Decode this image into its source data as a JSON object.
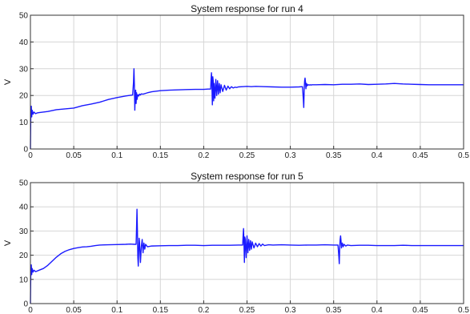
{
  "chart_data": [
    {
      "type": "line",
      "title": "System response for run 4",
      "xlabel": "",
      "ylabel": "V",
      "xlim": [
        0,
        0.5
      ],
      "ylim": [
        0,
        50
      ],
      "x_ticks": [
        "0",
        "0.05",
        "0.1",
        "0.15",
        "0.2",
        "0.25",
        "0.3",
        "0.35",
        "0.4",
        "0.45",
        "0.5"
      ],
      "y_ticks": [
        "0",
        "10",
        "20",
        "30",
        "40",
        "50"
      ],
      "grid": true,
      "color": "#1a1aff",
      "series": [
        {
          "x": [
            0,
            0.0005,
            0.001,
            0.0015,
            0.002,
            0.003,
            0.004,
            0.006,
            0.008,
            0.01,
            0.02,
            0.03,
            0.04,
            0.05,
            0.06,
            0.07,
            0.08,
            0.09,
            0.1,
            0.11,
            0.118,
            0.119,
            0.1195,
            0.12,
            0.1205,
            0.121,
            0.1215,
            0.122,
            0.1225,
            0.123,
            0.124,
            0.125,
            0.126,
            0.127,
            0.128,
            0.13,
            0.135,
            0.14,
            0.15,
            0.16,
            0.17,
            0.18,
            0.19,
            0.2,
            0.205,
            0.208,
            0.2085,
            0.209,
            0.2095,
            0.21,
            0.2105,
            0.211,
            0.2115,
            0.212,
            0.213,
            0.214,
            0.215,
            0.216,
            0.217,
            0.218,
            0.219,
            0.22,
            0.222,
            0.224,
            0.226,
            0.228,
            0.23,
            0.232,
            0.234,
            0.236,
            0.238,
            0.24,
            0.245,
            0.25,
            0.255,
            0.26,
            0.27,
            0.28,
            0.29,
            0.3,
            0.31,
            0.314,
            0.3145,
            0.315,
            0.3155,
            0.316,
            0.3165,
            0.317,
            0.3175,
            0.318,
            0.3185,
            0.319,
            0.3195,
            0.32,
            0.321,
            0.322,
            0.323,
            0.324,
            0.325,
            0.33,
            0.34,
            0.35,
            0.36,
            0.37,
            0.38,
            0.39,
            0.4,
            0.41,
            0.42,
            0.43,
            0.44,
            0.45,
            0.46,
            0.47,
            0.48,
            0.49,
            0.5
          ],
          "y": [
            0,
            15,
            16,
            12,
            14.5,
            13,
            13.8,
            13.2,
            13.5,
            13.6,
            14,
            14.7,
            15,
            15.3,
            16.2,
            16.8,
            17.5,
            18.5,
            19.2,
            19.8,
            20.2,
            25,
            30,
            24,
            14.5,
            20,
            22,
            17,
            21,
            18.5,
            20.3,
            19.8,
            20.5,
            20.2,
            20.6,
            20.5,
            21,
            21.4,
            21.8,
            22,
            22.1,
            22.2,
            22.3,
            22.3,
            22.4,
            22.4,
            26,
            28.5,
            24,
            16.5,
            27,
            25.5,
            18,
            24.5,
            19,
            26,
            20,
            25.5,
            20.5,
            24.5,
            21,
            24,
            21.5,
            23.8,
            22,
            23.5,
            22.5,
            23.3,
            22.8,
            23.1,
            23,
            23.2,
            23.3,
            23.4,
            23.3,
            23.4,
            23.3,
            23.2,
            23.1,
            23.1,
            23.2,
            23.3,
            21,
            18.5,
            15.5,
            22,
            25.5,
            26.5,
            25,
            22.5,
            24.5,
            23.5,
            24.2,
            23.8,
            24,
            23.9,
            24,
            23.9,
            24,
            24,
            24.1,
            24,
            24.2,
            24.2,
            24.3,
            24.1,
            24.2,
            24.3,
            24.5,
            24.3,
            24.2,
            24.1,
            24,
            24,
            24,
            24,
            24
          ]
        }
      ]
    },
    {
      "type": "line",
      "title": "System response for run 5",
      "xlabel": "",
      "ylabel": "V",
      "xlim": [
        0,
        0.5
      ],
      "ylim": [
        0,
        50
      ],
      "x_ticks": [
        "0",
        "0.05",
        "0.1",
        "0.15",
        "0.2",
        "0.25",
        "0.3",
        "0.35",
        "0.4",
        "0.45",
        "0.5"
      ],
      "y_ticks": [
        "0",
        "10",
        "20",
        "30",
        "40",
        "50"
      ],
      "grid": true,
      "color": "#1a1aff",
      "series": [
        {
          "x": [
            0,
            0.0005,
            0.001,
            0.0015,
            0.002,
            0.003,
            0.004,
            0.006,
            0.008,
            0.01,
            0.015,
            0.02,
            0.025,
            0.03,
            0.035,
            0.04,
            0.045,
            0.05,
            0.055,
            0.06,
            0.065,
            0.07,
            0.075,
            0.08,
            0.09,
            0.1,
            0.11,
            0.115,
            0.12,
            0.122,
            0.1225,
            0.123,
            0.1235,
            0.124,
            0.1245,
            0.125,
            0.1255,
            0.126,
            0.127,
            0.128,
            0.129,
            0.13,
            0.131,
            0.132,
            0.133,
            0.135,
            0.14,
            0.15,
            0.16,
            0.17,
            0.18,
            0.19,
            0.2,
            0.21,
            0.22,
            0.23,
            0.24,
            0.245,
            0.2455,
            0.246,
            0.2465,
            0.247,
            0.2475,
            0.248,
            0.249,
            0.25,
            0.251,
            0.252,
            0.253,
            0.254,
            0.255,
            0.256,
            0.258,
            0.26,
            0.262,
            0.264,
            0.266,
            0.268,
            0.27,
            0.275,
            0.28,
            0.29,
            0.3,
            0.31,
            0.32,
            0.33,
            0.34,
            0.35,
            0.355,
            0.3555,
            0.356,
            0.3565,
            0.357,
            0.3575,
            0.358,
            0.3585,
            0.359,
            0.36,
            0.361,
            0.362,
            0.364,
            0.366,
            0.37,
            0.38,
            0.39,
            0.4,
            0.41,
            0.42,
            0.43,
            0.44,
            0.45,
            0.46,
            0.47,
            0.48,
            0.49,
            0.5
          ],
          "y": [
            0,
            15,
            16,
            12,
            14.5,
            13,
            13.8,
            13.2,
            13.5,
            13.8,
            14.5,
            15.8,
            17.5,
            19.2,
            20.6,
            21.6,
            22.3,
            22.8,
            23.1,
            23.4,
            23.5,
            23.7,
            24,
            24.2,
            24.3,
            24.4,
            24.5,
            24.6,
            24.5,
            24.5,
            31,
            39,
            30,
            19,
            15.5,
            22,
            27,
            25,
            17,
            23.5,
            26.5,
            21,
            25,
            22.5,
            24.5,
            23.5,
            23.8,
            23.9,
            24,
            24,
            24.1,
            24.1,
            24,
            24.1,
            24.1,
            24.1,
            24.2,
            24.2,
            28,
            31,
            25,
            17,
            27.5,
            26.5,
            19,
            28,
            21,
            26.5,
            22,
            26,
            22.5,
            25.5,
            23,
            25,
            23.5,
            24.8,
            23.8,
            24.6,
            24,
            24.3,
            24.2,
            24.3,
            24.2,
            24.1,
            24.2,
            24.2,
            24.3,
            24.2,
            24.2,
            22,
            19.5,
            16.5,
            23,
            26.5,
            28,
            26,
            23,
            25,
            23.5,
            24.5,
            23.8,
            24.2,
            24,
            24.1,
            24.1,
            24,
            24,
            24,
            24.1,
            24,
            24,
            24,
            24,
            24,
            24,
            24
          ]
        }
      ]
    }
  ]
}
